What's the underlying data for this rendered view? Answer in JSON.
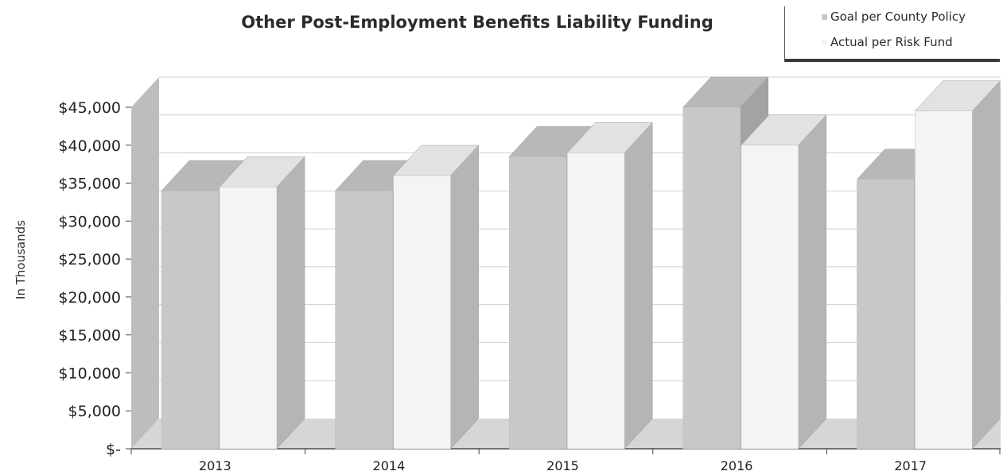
{
  "chart_data": {
    "type": "bar",
    "title": "Other Post-Employment Benefits Liability Funding",
    "xlabel": "",
    "ylabel": "In Thousands",
    "categories": [
      "2013",
      "2014",
      "2015",
      "2016",
      "2017"
    ],
    "series": [
      {
        "name": "Goal per County Policy",
        "values": [
          34000,
          34000,
          38500,
          45000,
          35500
        ],
        "color": "#c8c8c8"
      },
      {
        "name": "Actual per Risk Fund",
        "values": [
          34500,
          36000,
          39000,
          40000,
          44500
        ],
        "color": "#f4f4f4"
      }
    ],
    "ylim": [
      0,
      45000
    ],
    "y_ticks": [
      "$-",
      "$5,000",
      "$10,000",
      "$15,000",
      "$20,000",
      "$25,000",
      "$30,000",
      "$35,000",
      "$40,000",
      "$45,000"
    ],
    "grid": true,
    "legend_position": "top-right",
    "style": "3d-clustered-columns"
  }
}
